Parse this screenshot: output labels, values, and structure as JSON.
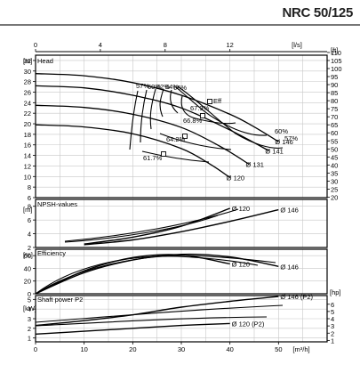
{
  "header": {
    "model": "NRC 50/125"
  },
  "chart_data": [
    {
      "type": "line",
      "title": "Head",
      "ylabel_left": "[m]",
      "ylabel_right": "[ft]",
      "xlabel_top": "[l/s]",
      "x_top_ticks": [
        "0",
        "4",
        "8",
        "12"
      ],
      "xlim": [
        0,
        60
      ],
      "ylim": [
        6,
        33
      ],
      "y_left_ticks": [
        "6",
        "8",
        "10",
        "12",
        "14",
        "16",
        "18",
        "20",
        "22",
        "24",
        "26",
        "28",
        "30",
        "32"
      ],
      "y_right_ticks": [
        "20",
        "25",
        "30",
        "35",
        "40",
        "45",
        "50",
        "55",
        "60",
        "65",
        "70",
        "75",
        "80",
        "85",
        "90",
        "95",
        "100",
        "105",
        "110"
      ],
      "series": [
        {
          "name": "Ø 146",
          "x": [
            0,
            10,
            20,
            30,
            40,
            45,
            50
          ],
          "y": [
            29.5,
            29.1,
            27.8,
            25.4,
            21.8,
            19.4,
            16.6
          ]
        },
        {
          "name": "Ø 141",
          "x": [
            0,
            10,
            20,
            30,
            40,
            48
          ],
          "y": [
            27.2,
            26.8,
            25.4,
            23.0,
            18.8,
            14.9
          ]
        },
        {
          "name": "Ø 131",
          "x": [
            0,
            10,
            20,
            30,
            38,
            44
          ],
          "y": [
            23.5,
            23.1,
            21.8,
            19.3,
            15.7,
            12.3
          ]
        },
        {
          "name": "Ø 120",
          "x": [
            0,
            10,
            20,
            30,
            36,
            40
          ],
          "y": [
            19.8,
            19.4,
            18.1,
            15.3,
            12.3,
            9.8
          ]
        }
      ],
      "annotations": [
        "57%",
        "60%",
        "62%",
        "64%",
        "66%",
        "67.9%",
        "Eff",
        "66.8%",
        "64.2%",
        "61.7%",
        "60%",
        "57%"
      ]
    },
    {
      "type": "line",
      "title": "NPSH-values",
      "ylabel": "[m]",
      "ylim": [
        2,
        9
      ],
      "y_ticks": [
        "2",
        "4",
        "6",
        "8"
      ],
      "series": [
        {
          "name": "Ø 146",
          "x": [
            10,
            20,
            30,
            40,
            50
          ],
          "y": [
            2.4,
            3.1,
            4.3,
            5.8,
            7.5
          ]
        },
        {
          "name": "Ø 120",
          "x": [
            10,
            20,
            30,
            40
          ],
          "y": [
            2.5,
            3.5,
            5.1,
            7.7
          ]
        }
      ]
    },
    {
      "type": "line",
      "title": "Efficiency",
      "ylabel": "[%]",
      "ylim": [
        0,
        70
      ],
      "y_ticks": [
        "0",
        "20",
        "40",
        "60"
      ],
      "series": [
        {
          "name": "Ø 146",
          "x": [
            0,
            10,
            20,
            30,
            40,
            50
          ],
          "y": [
            0,
            33,
            53,
            62,
            58,
            43
          ]
        },
        {
          "name": "Ø 120",
          "x": [
            0,
            10,
            20,
            30,
            40
          ],
          "y": [
            0,
            36,
            57,
            61,
            47
          ]
        }
      ]
    },
    {
      "type": "line",
      "title": "Shaft power P2",
      "ylabel_left": "[kW]",
      "ylabel_right": "[hp]",
      "xlabel_bottom": "[m³/h]",
      "x_bottom_ticks": [
        "0",
        "10",
        "20",
        "30",
        "40",
        "50"
      ],
      "xlim": [
        0,
        60
      ],
      "ylim": [
        0.6,
        5.4
      ],
      "y_left_ticks": [
        "1",
        "2",
        "3",
        "4",
        "5"
      ],
      "y_right_ticks": [
        "1",
        "2",
        "3",
        "4",
        "5",
        "6"
      ],
      "series": [
        {
          "name": "Ø 146 (P2)",
          "x": [
            0,
            10,
            20,
            30,
            40,
            50
          ],
          "y": [
            2.3,
            2.8,
            3.4,
            4.2,
            4.8,
            5.3
          ]
        },
        {
          "name": "Ø 120 (P2)",
          "x": [
            0,
            10,
            20,
            30,
            40
          ],
          "y": [
            1.4,
            1.7,
            2.0,
            2.3,
            2.5
          ]
        }
      ]
    }
  ]
}
